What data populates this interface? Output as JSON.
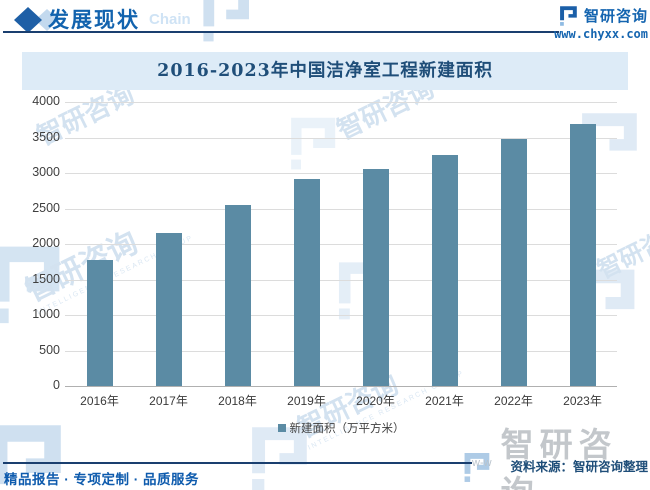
{
  "header": {
    "section_title": "发展现状",
    "background_word": "Chain",
    "brand_name": "智研咨询",
    "brand_url": "www.chyxx.com"
  },
  "chart_data": {
    "type": "bar",
    "title": "2016-2023年中国洁净室工程新建面积",
    "categories": [
      "2016年",
      "2017年",
      "2018年",
      "2019年",
      "2020年",
      "2021年",
      "2022年",
      "2023年"
    ],
    "values": [
      1780,
      2155,
      2550,
      2915,
      3055,
      3255,
      3480,
      3690
    ],
    "series_name": "新建面积（万平方米）",
    "unit": "万平方米",
    "ylim": [
      0,
      4000
    ],
    "yticks": [
      0,
      500,
      1000,
      1500,
      2000,
      2500,
      3000,
      3500,
      4000
    ],
    "grid": true,
    "legend_position": "bottom",
    "bar_color": "#5b8ba4"
  },
  "footer": {
    "tagline": "精品报告 · 专项定制 · 品质服务",
    "source": "资料来源：智研咨询整理"
  },
  "watermark": {
    "brand": "智研咨询",
    "caption": "INTELLIGENCE RESEARCH GROUP",
    "url_fragment": "w-w"
  },
  "colors": {
    "accent_blue": "#1263ae",
    "navy_rule": "#1a3f6f",
    "title_band_bg": "#ddebf7",
    "title_text": "#1f4e79",
    "bar": "#5b8ba4"
  }
}
